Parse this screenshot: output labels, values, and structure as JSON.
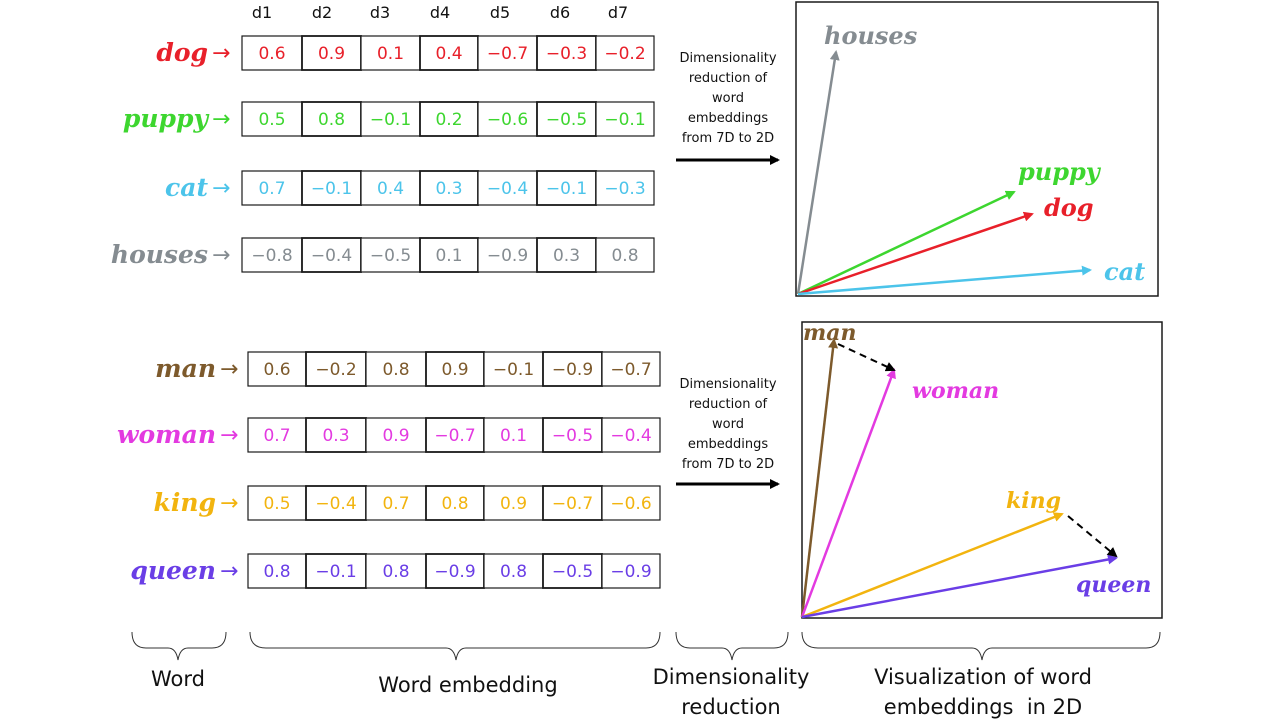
{
  "colors": {
    "dog": "#e8202a",
    "puppy": "#3dd62f",
    "cat": "#4cc4ea",
    "houses": "#858c91",
    "man": "#7d5a2c",
    "woman": "#e33ae0",
    "king": "#f2b40f",
    "queen": "#6a3ee6",
    "frame": "#1a1a1a"
  },
  "columns": [
    "d1",
    "d2",
    "d3",
    "d4",
    "d5",
    "d6",
    "d7"
  ],
  "groups": [
    {
      "words": [
        {
          "key": "dog",
          "label": "dog",
          "values": [
            "0.6",
            "0.9",
            "0.1",
            "0.4",
            "−0.7",
            "−0.3",
            "−0.2"
          ]
        },
        {
          "key": "puppy",
          "label": "puppy",
          "values": [
            "0.5",
            "0.8",
            "−0.1",
            "0.2",
            "−0.6",
            "−0.5",
            "−0.1"
          ]
        },
        {
          "key": "cat",
          "label": "cat",
          "values": [
            "0.7",
            "−0.1",
            "0.4",
            "0.3",
            "−0.4",
            "−0.1",
            "−0.3"
          ]
        },
        {
          "key": "houses",
          "label": "houses",
          "values": [
            "−0.8",
            "−0.4",
            "−0.5",
            "0.1",
            "−0.9",
            "0.3",
            "0.8"
          ]
        }
      ],
      "reduction_text": [
        "Dimensionality",
        "reduction of",
        "word",
        "embeddings",
        "from 7D to 2D"
      ],
      "plot_labels": {
        "houses": "houses",
        "puppy": "puppy",
        "dog": "dog",
        "cat": "cat"
      }
    },
    {
      "words": [
        {
          "key": "man",
          "label": "man",
          "values": [
            "0.6",
            "−0.2",
            "0.8",
            "0.9",
            "−0.1",
            "−0.9",
            "−0.7"
          ]
        },
        {
          "key": "woman",
          "label": "woman",
          "values": [
            "0.7",
            "0.3",
            "0.9",
            "−0.7",
            "0.1",
            "−0.5",
            "−0.4"
          ]
        },
        {
          "key": "king",
          "label": "king",
          "values": [
            "0.5",
            "−0.4",
            "0.7",
            "0.8",
            "0.9",
            "−0.7",
            "−0.6"
          ]
        },
        {
          "key": "queen",
          "label": "queen",
          "values": [
            "0.8",
            "−0.1",
            "0.8",
            "−0.9",
            "0.8",
            "−0.5",
            "−0.9"
          ]
        }
      ],
      "reduction_text": [
        "Dimensionality",
        "reduction of",
        "word",
        "embeddings",
        "from 7D to 2D"
      ],
      "plot_labels": {
        "man": "man",
        "woman": "woman",
        "king": "king",
        "queen": "queen"
      }
    }
  ],
  "bottom_labels": {
    "word": "Word",
    "embedding": "Word embedding",
    "reduction": [
      "Dimensionality",
      "reduction"
    ],
    "visualization": [
      "Visualization of word",
      "embeddings  in 2D"
    ]
  }
}
